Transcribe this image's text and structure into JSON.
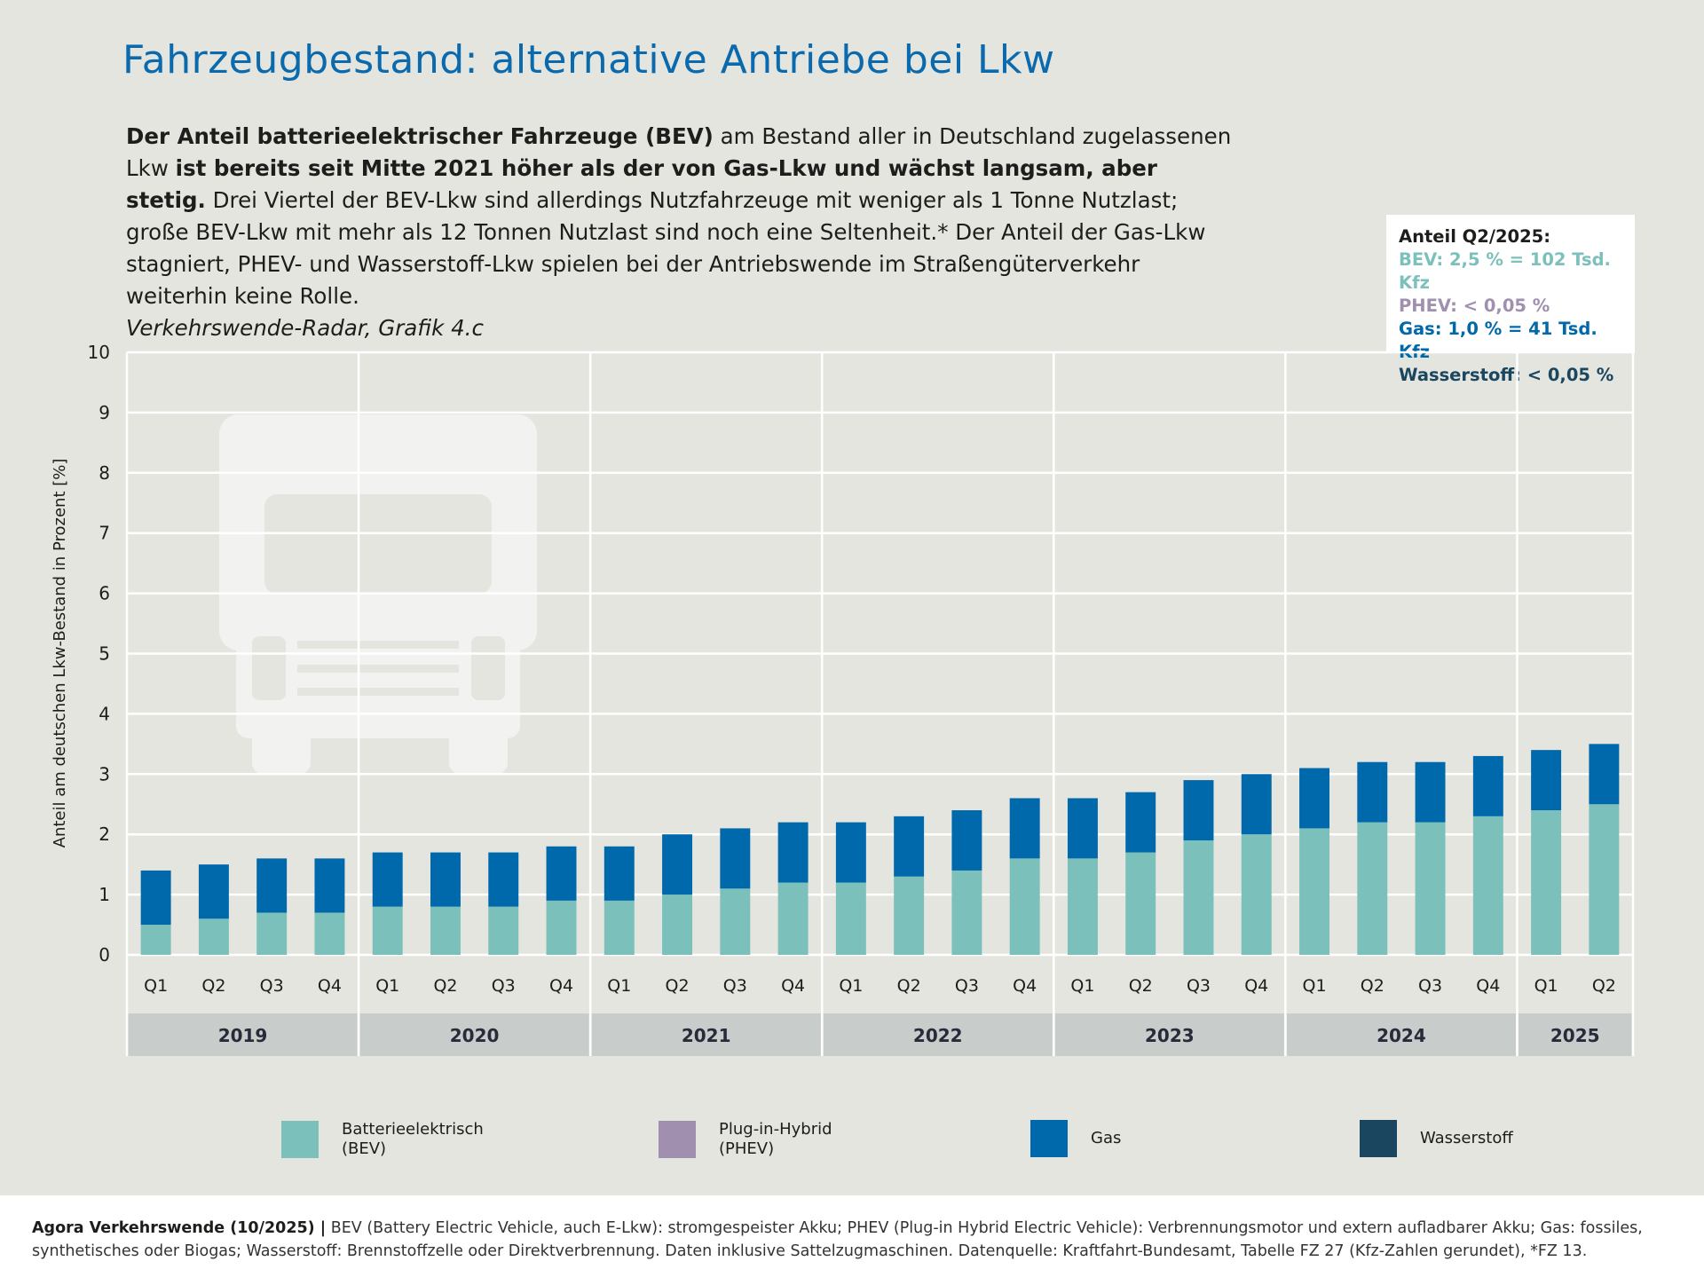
{
  "title": "Fahrzeugbestand: alternative Antriebe bei Lkw",
  "intro": {
    "bold1": "Der Anteil batterieelektrischer Fahrzeuge (BEV)",
    "text1": " am Bestand aller in Deutschland zugelassenen Lkw ",
    "bold2": "ist bereits seit Mitte 2021 höher als der von Gas-Lkw und wächst langsam, aber stetig.",
    "text2": " Drei Viertel der BEV-Lkw sind allerdings Nutzfahrzeuge mit weniger als 1 Tonne Nutzlast; große BEV-Lkw mit mehr als 12 Tonnen Nutzlast sind noch eine Seltenheit.* Der Anteil der Gas-Lkw stagniert, PHEV- und Wasser­stoff-Lkw spielen bei der Antriebswende im Straßengüterverkehr weiterhin keine Rolle.",
    "source": "Verkehrswende-Radar, Grafik 4.c"
  },
  "infobox": {
    "heading": "Anteil Q2/2025:",
    "bev": "BEV: 2,5 % = 102 Tsd. Kfz",
    "phev": "PHEV: < 0,05 %",
    "gas": "Gas: 1,0 % = 41 Tsd. Kfz",
    "h2": "Wasserstoff: < 0,05 %"
  },
  "colors": {
    "bev": "#7bc0bb",
    "phev": "#a08fae",
    "gas": "#0069ab",
    "h2": "#1b4660",
    "title": "#0a6aad"
  },
  "legend": [
    {
      "label1": "Batterieelektrisch",
      "label2": "(BEV)",
      "color": "#7bc0bb"
    },
    {
      "label1": "Plug-in-Hybrid",
      "label2": "(PHEV)",
      "color": "#a08fae"
    },
    {
      "label1": "Gas",
      "label2": "",
      "color": "#0069ab"
    },
    {
      "label1": "Wasserstoff",
      "label2": "",
      "color": "#1b4660"
    }
  ],
  "footer": {
    "bold": "Agora Verkehrswende (10/2025) |",
    "text": " BEV (Battery Electric Vehicle, auch E-Lkw): stromgespeister Akku; PHEV (Plug-in Hybrid Electric Vehicle): Verbrennungsmotor und extern aufladbarer Akku; Gas: fossiles, synthetisches oder Biogas; Wasserstoff: Brennstoffzelle oder Direktverbrennung. Daten inklusive Sattelzugmaschinen. Datenquelle: Kraftfahrt-Bundesamt, Tabelle FZ 27 (Kfz-Zahlen gerundet), *FZ 13."
  },
  "chart_data": {
    "type": "bar",
    "stacked": true,
    "ylabel": "Anteil am deutschen Lkw-Bestand in Prozent [%]",
    "ylim": [
      0,
      10
    ],
    "yticks": [
      0,
      1,
      2,
      3,
      4,
      5,
      6,
      7,
      8,
      9,
      10
    ],
    "grid": true,
    "categories": [
      "Q1",
      "Q2",
      "Q3",
      "Q4",
      "Q1",
      "Q2",
      "Q3",
      "Q4",
      "Q1",
      "Q2",
      "Q3",
      "Q4",
      "Q1",
      "Q2",
      "Q3",
      "Q4",
      "Q1",
      "Q2",
      "Q3",
      "Q4",
      "Q1",
      "Q2",
      "Q3",
      "Q4",
      "Q1",
      "Q2"
    ],
    "years": [
      {
        "label": "2019",
        "quarters": 4
      },
      {
        "label": "2020",
        "quarters": 4
      },
      {
        "label": "2021",
        "quarters": 4
      },
      {
        "label": "2022",
        "quarters": 4
      },
      {
        "label": "2023",
        "quarters": 4
      },
      {
        "label": "2024",
        "quarters": 4
      },
      {
        "label": "2025",
        "quarters": 2
      }
    ],
    "series": [
      {
        "name": "Batterieelektrisch (BEV)",
        "color": "#7bc0bb",
        "values": [
          0.5,
          0.6,
          0.7,
          0.7,
          0.8,
          0.8,
          0.8,
          0.9,
          0.9,
          1.0,
          1.1,
          1.2,
          1.2,
          1.3,
          1.4,
          1.6,
          1.6,
          1.7,
          1.9,
          2.0,
          2.1,
          2.2,
          2.2,
          2.3,
          2.4,
          2.5
        ]
      },
      {
        "name": "Gas",
        "color": "#0069ab",
        "values": [
          0.9,
          0.9,
          0.9,
          0.9,
          0.9,
          0.9,
          0.9,
          0.9,
          0.9,
          1.0,
          1.0,
          1.0,
          1.0,
          1.0,
          1.0,
          1.0,
          1.0,
          1.0,
          1.0,
          1.0,
          1.0,
          1.0,
          1.0,
          1.0,
          1.0,
          1.0
        ]
      }
    ],
    "legend_position": "bottom"
  }
}
